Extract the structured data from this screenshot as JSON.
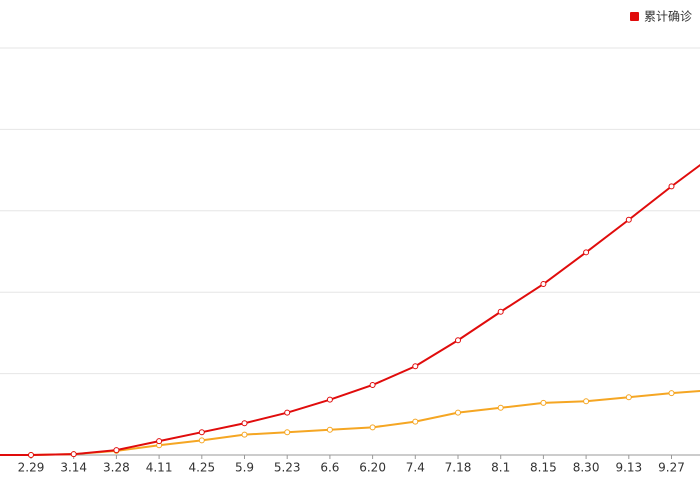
{
  "chart_data": {
    "type": "line",
    "categories": [
      null,
      "2.29",
      "3.14",
      "3.28",
      "4.11",
      "4.25",
      "5.9",
      "5.23",
      "6.6",
      "6.20",
      "7.4",
      "7.18",
      "8.1",
      "8.15",
      "8.30",
      "9.13",
      "9.27",
      null
    ],
    "series": [
      {
        "name": "累计确诊",
        "color": "#e00c0c",
        "values": [
          0,
          0,
          0.01,
          0.06,
          0.17,
          0.28,
          0.39,
          0.52,
          0.68,
          0.86,
          1.09,
          1.41,
          1.76,
          2.1,
          2.49,
          2.89,
          3.3,
          3.69
        ]
      },
      {
        "color": "#f5a623",
        "values": [
          0,
          0,
          0.01,
          0.05,
          0.12,
          0.18,
          0.25,
          0.28,
          0.31,
          0.34,
          0.41,
          0.52,
          0.58,
          0.64,
          0.66,
          0.71,
          0.76,
          0.8
        ]
      }
    ],
    "ylim": [
      0,
      5
    ],
    "gridlines": [
      0,
      1,
      2,
      3,
      4,
      5
    ],
    "grid": true,
    "legend": "top-right"
  }
}
